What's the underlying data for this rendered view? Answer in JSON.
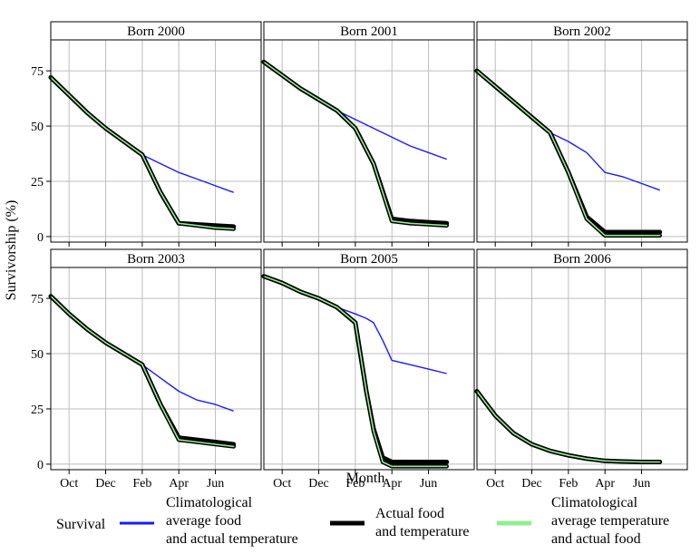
{
  "chart_data": {
    "type": "line",
    "layout": "2x3 facets",
    "xlabel": "Month",
    "ylabel": "Survivorship (%)",
    "xlim": [
      0,
      11.5
    ],
    "ylim": [
      -2.5,
      89
    ],
    "x_ticks": [
      {
        "value": 1,
        "label": "Oct"
      },
      {
        "value": 3,
        "label": "Dec"
      },
      {
        "value": 5,
        "label": "Feb"
      },
      {
        "value": 7,
        "label": "Apr"
      },
      {
        "value": 9,
        "label": "Jun"
      }
    ],
    "y_ticks": [
      0,
      25,
      50,
      75
    ],
    "legend": {
      "position": "bottom",
      "title": "Survival",
      "entries": [
        {
          "key": "climatological_food",
          "lines": [
            "Climatological",
            "average food",
            "and actual temperature"
          ],
          "color": "#1a1aff"
        },
        {
          "key": "actual",
          "lines": [
            "Actual food",
            "and temperature"
          ],
          "color": "#000000"
        },
        {
          "key": "climatological_temperature",
          "lines": [
            "Climatological",
            "average temperature",
            "and actual food"
          ],
          "color": "#90ee90"
        }
      ]
    },
    "panels": [
      {
        "title": "Born 2000",
        "x": [
          0,
          1,
          2,
          3,
          4,
          5,
          6,
          7,
          8,
          9,
          10
        ],
        "series": [
          {
            "key": "climatological_food",
            "values": [
              72,
              64,
              56,
              49,
              43,
              37,
              33,
              29,
              26,
              23,
              20
            ]
          },
          {
            "key": "actual",
            "values": [
              72,
              64,
              56,
              49,
              43,
              37,
              20,
              6,
              5.5,
              5,
              4.5
            ]
          },
          {
            "key": "climatological_temperature",
            "values": [
              72,
              64,
              56,
              49,
              43,
              37,
              20,
              6,
              5,
              4,
              3.5
            ]
          }
        ]
      },
      {
        "title": "Born 2001",
        "x": [
          0,
          1,
          2,
          3,
          4,
          5,
          6,
          7,
          8,
          9,
          10
        ],
        "series": [
          {
            "key": "climatological_food",
            "values": [
              79,
              73,
              67,
              62,
              57,
              53,
              49,
              45,
              41,
              38,
              35
            ]
          },
          {
            "key": "actual",
            "values": [
              79,
              73,
              67,
              62,
              57,
              49,
              33,
              8,
              7,
              6.5,
              6
            ]
          },
          {
            "key": "climatological_temperature",
            "values": [
              79,
              73,
              67,
              62,
              57,
              49,
              33,
              7,
              6,
              5.5,
              5
            ]
          }
        ]
      },
      {
        "title": "Born 2002",
        "x": [
          0,
          1,
          2,
          3,
          4,
          5,
          6,
          7,
          8,
          9,
          10
        ],
        "series": [
          {
            "key": "climatological_food",
            "values": [
              75,
              68,
              61,
              54,
              47,
              43,
              38,
              29,
              27,
              24,
              21
            ]
          },
          {
            "key": "actual",
            "values": [
              75,
              68,
              61,
              54,
              47,
              29,
              9,
              2,
              2,
              2,
              2
            ]
          },
          {
            "key": "climatological_temperature",
            "values": [
              75,
              68,
              61,
              54,
              47,
              29,
              8,
              0.5,
              0.5,
              0.5,
              0.5
            ]
          }
        ]
      },
      {
        "title": "Born 2003",
        "x": [
          0,
          1,
          2,
          3,
          4,
          5,
          6,
          7,
          8,
          9,
          10
        ],
        "series": [
          {
            "key": "climatological_food",
            "values": [
              76,
              68,
              61,
              55,
              50,
              45,
              39,
              33,
              29,
              27,
              24
            ]
          },
          {
            "key": "actual",
            "values": [
              76,
              68,
              61,
              55,
              50,
              45,
              27,
              12,
              11,
              10,
              9
            ]
          },
          {
            "key": "climatological_temperature",
            "values": [
              76,
              68,
              61,
              55,
              50,
              45,
              27,
              11,
              10,
              9,
              8
            ]
          }
        ]
      },
      {
        "title": "Born 2005",
        "x": [
          0,
          1,
          2,
          3,
          4,
          5,
          5.6,
          6,
          6.5,
          7,
          8,
          9,
          10
        ],
        "series": [
          {
            "key": "climatological_food",
            "values": [
              85,
              82,
              78,
              75,
              71,
              68,
              66,
              64,
              56,
              47,
              45,
              43,
              41
            ]
          },
          {
            "key": "actual",
            "values": [
              85,
              82,
              78,
              75,
              71,
              64,
              33,
              16,
              3,
              1,
              1,
              1,
              1
            ]
          },
          {
            "key": "climatological_temperature",
            "values": [
              85,
              82,
              78,
              75,
              71,
              64,
              33,
              15,
              1,
              -1,
              -1,
              -1,
              -1
            ]
          }
        ]
      },
      {
        "title": "Born 2006",
        "x": [
          0,
          1,
          2,
          3,
          4,
          5,
          6,
          7,
          8,
          9,
          10
        ],
        "series": [
          {
            "key": "actual",
            "values": [
              33,
              22,
              14,
              9,
              6,
              4,
              2.5,
              1.5,
              1.2,
              1,
              1
            ]
          },
          {
            "key": "climatological_temperature",
            "values": [
              33,
              22,
              14,
              9,
              6,
              4,
              2.5,
              1.5,
              1.2,
              1,
              1
            ]
          }
        ]
      }
    ]
  }
}
